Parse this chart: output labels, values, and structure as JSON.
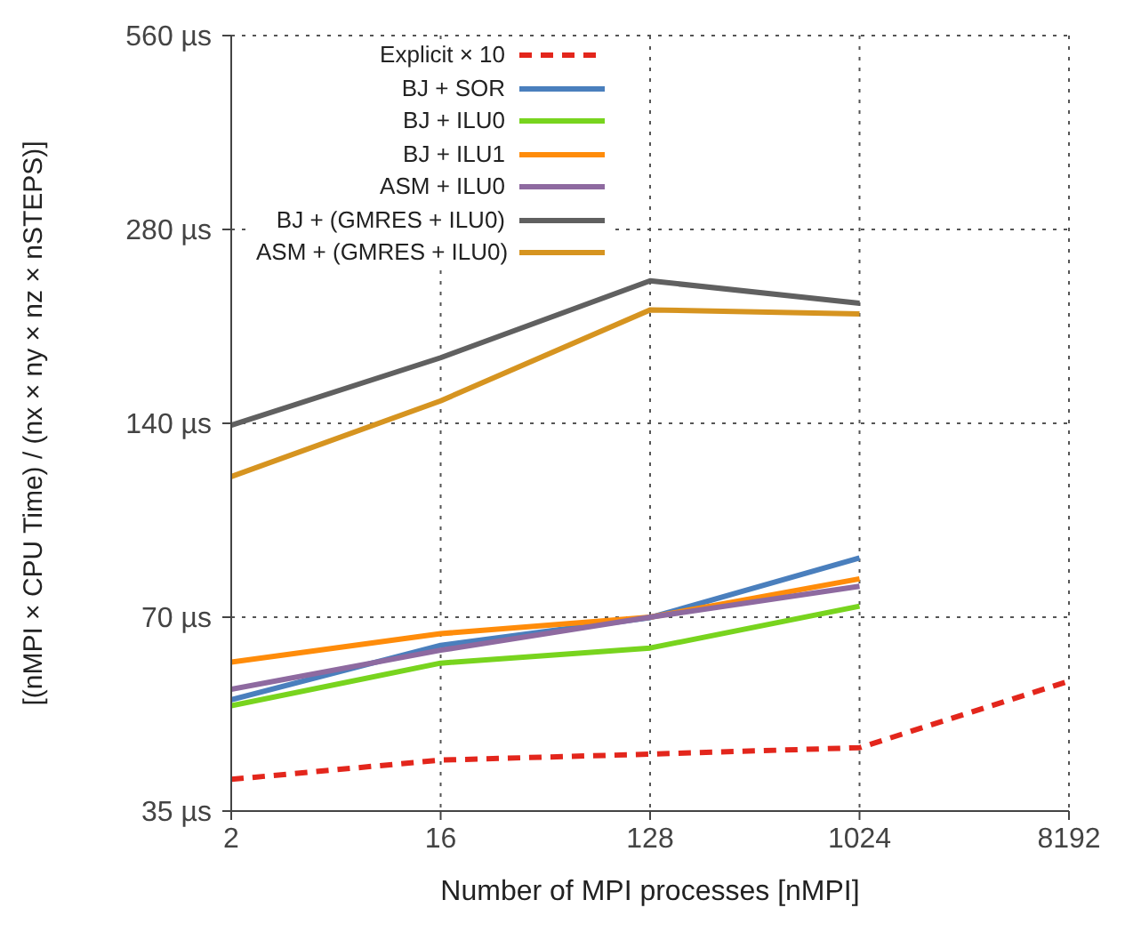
{
  "chart_data": {
    "type": "line",
    "xlabel": "Number of MPI processes [nMPI]",
    "ylabel": "[(nMPI × CPU Time) / (nx × ny × nz × nSTEPS)]",
    "x": [
      2,
      16,
      128,
      1024,
      8192
    ],
    "xlim": [
      2,
      8192
    ],
    "xticks": [
      2,
      16,
      128,
      1024,
      8192
    ],
    "log": "xy",
    "ylim": [
      35,
      560
    ],
    "yticks": [
      {
        "value": 35,
        "label": "35 µs"
      },
      {
        "value": 70,
        "label": "70 µs"
      },
      {
        "value": 140,
        "label": "140 µs"
      },
      {
        "value": 280,
        "label": "280 µs"
      },
      {
        "value": 560,
        "label": "560 µs"
      }
    ],
    "grid": true,
    "legend": "top left",
    "marker": "none",
    "series": [
      {
        "name": "Explicit × 10",
        "color": "#e3261c",
        "line_style": "dashed",
        "values": [
          39.2,
          42,
          42.9,
          43.9,
          55.7
        ]
      },
      {
        "name": "BJ + SOR",
        "color": "#4a7fbd",
        "values": [
          52.1,
          63.3,
          69.9,
          86.5,
          null
        ]
      },
      {
        "name": "BJ + ILU0",
        "color": "#78d41e",
        "values": [
          51,
          59.4,
          62.7,
          72.8,
          null
        ]
      },
      {
        "name": "BJ + ILU1",
        "color": "#ff8c0a",
        "values": [
          59.6,
          66,
          70,
          80.3,
          null
        ]
      },
      {
        "name": "ASM + ILU0",
        "color": "#8e6aa0",
        "values": [
          54.1,
          62.2,
          70,
          78.2,
          null
        ]
      },
      {
        "name": "BJ + (GMRES + ILU0)",
        "color": "#606060",
        "values": [
          139,
          177,
          233,
          215,
          null
        ]
      },
      {
        "name": "ASM + (GMRES + ILU0)",
        "color": "#d69420",
        "values": [
          115.7,
          151.7,
          210,
          207,
          null
        ]
      }
    ]
  }
}
